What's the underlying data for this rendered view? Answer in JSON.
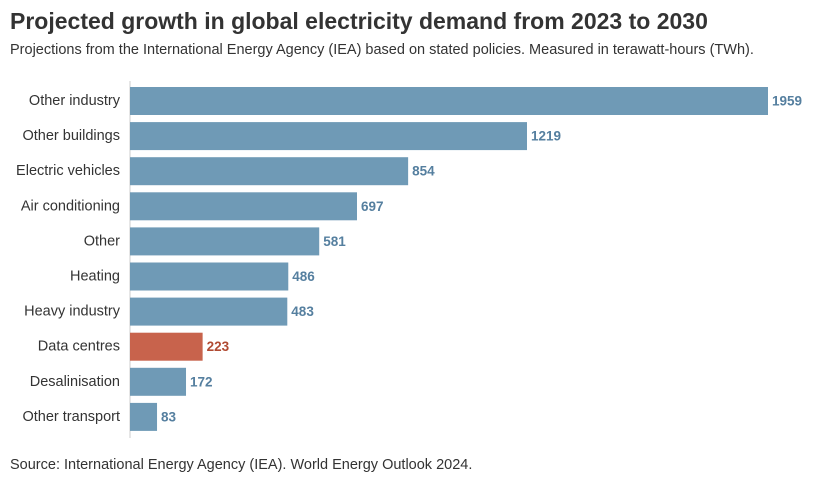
{
  "title": "Projected growth in global electricity demand from 2023 to 2030",
  "subtitle": "Projections from the International Energy Agency (IEA) based on stated policies. Measured in terawatt-hours (TWh).",
  "source": "Source: International Energy Agency (IEA). World Energy Outlook 2024.",
  "colors": {
    "default_bar": "#6f9ab6",
    "default_label": "#557f9f",
    "highlight_bar": "#c8634c",
    "highlight_label": "#b04a32",
    "axis": "#cccccc"
  },
  "chart_data": {
    "type": "bar",
    "orientation": "horizontal",
    "categories": [
      "Other industry",
      "Other buildings",
      "Electric vehicles",
      "Air conditioning",
      "Other",
      "Heating",
      "Heavy industry",
      "Data centres",
      "Desalinisation",
      "Other transport"
    ],
    "values": [
      1959,
      1219,
      854,
      697,
      581,
      486,
      483,
      223,
      172,
      83
    ],
    "highlighted": [
      "Data centres"
    ],
    "xlim": [
      0,
      1959
    ],
    "grid": false,
    "legend": "none"
  }
}
